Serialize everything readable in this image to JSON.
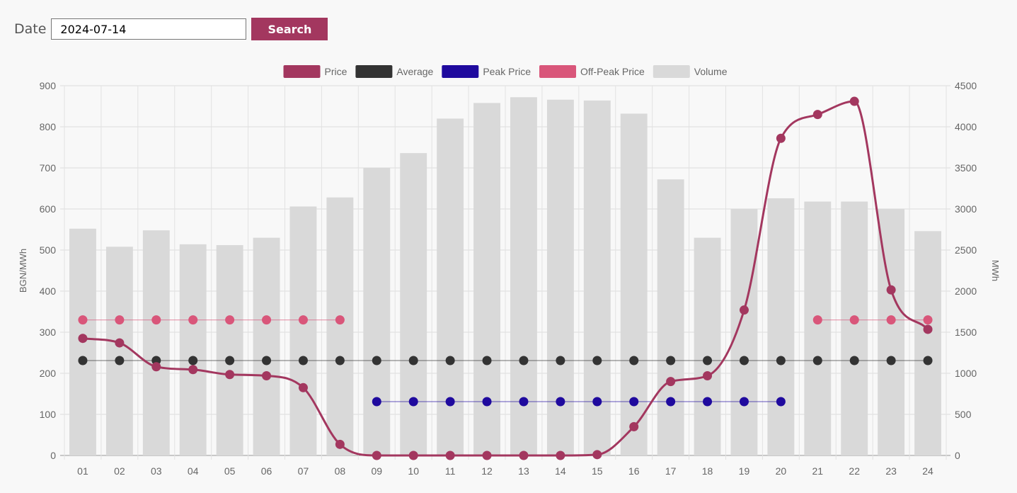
{
  "form": {
    "date_label": "Date",
    "date_value": "2024-07-14",
    "search_label": "Search"
  },
  "colors": {
    "price": "#a3375f",
    "average": "#333333",
    "peak": "#1f0a9e",
    "offpeak": "#d9567a",
    "volume": "#d9d9d9"
  },
  "chart_data": {
    "type": "bar",
    "categories": [
      "01",
      "02",
      "03",
      "04",
      "05",
      "06",
      "07",
      "08",
      "09",
      "10",
      "11",
      "12",
      "13",
      "14",
      "15",
      "16",
      "17",
      "18",
      "19",
      "20",
      "21",
      "22",
      "23",
      "24"
    ],
    "legend": [
      "Price",
      "Average",
      "Peak Price",
      "Off-Peak Price",
      "Volume"
    ],
    "legend_position": "top",
    "y_left": {
      "label": "BGN/MWh",
      "range": [
        0,
        900
      ],
      "ticks": [
        0,
        100,
        200,
        300,
        400,
        500,
        600,
        700,
        800,
        900
      ]
    },
    "y_right": {
      "label": "MWh",
      "range": [
        0,
        4500
      ],
      "ticks": [
        0,
        500,
        1000,
        1500,
        2000,
        2500,
        3000,
        3500,
        4000,
        4500
      ]
    },
    "grid": true,
    "series": [
      {
        "name": "Price",
        "type": "line",
        "axis": "left",
        "values": [
          285,
          274,
          216,
          209,
          197,
          194,
          165,
          27,
          0,
          0,
          0,
          0,
          0,
          0,
          2,
          70,
          180,
          194,
          354,
          772,
          830,
          862,
          403,
          307
        ]
      },
      {
        "name": "Average",
        "type": "line",
        "axis": "left",
        "values": [
          231,
          231,
          231,
          231,
          231,
          231,
          231,
          231,
          231,
          231,
          231,
          231,
          231,
          231,
          231,
          231,
          231,
          231,
          231,
          231,
          231,
          231,
          231,
          231
        ]
      },
      {
        "name": "Peak Price",
        "type": "line",
        "axis": "left",
        "values": [
          null,
          null,
          null,
          null,
          null,
          null,
          null,
          null,
          131,
          131,
          131,
          131,
          131,
          131,
          131,
          131,
          131,
          131,
          131,
          131,
          null,
          null,
          null,
          null
        ]
      },
      {
        "name": "Off-Peak Price",
        "type": "line",
        "axis": "left",
        "values": [
          330,
          330,
          330,
          330,
          330,
          330,
          330,
          330,
          null,
          null,
          null,
          null,
          null,
          null,
          null,
          null,
          null,
          null,
          null,
          null,
          330,
          330,
          330,
          330
        ]
      },
      {
        "name": "Volume",
        "type": "bar",
        "axis": "right",
        "values": [
          2760,
          2540,
          2740,
          2570,
          2560,
          2650,
          3030,
          3140,
          3500,
          3680,
          4100,
          4290,
          4360,
          4330,
          4320,
          4160,
          3360,
          2650,
          3000,
          3130,
          3090,
          3090,
          3000,
          2730
        ]
      }
    ]
  }
}
